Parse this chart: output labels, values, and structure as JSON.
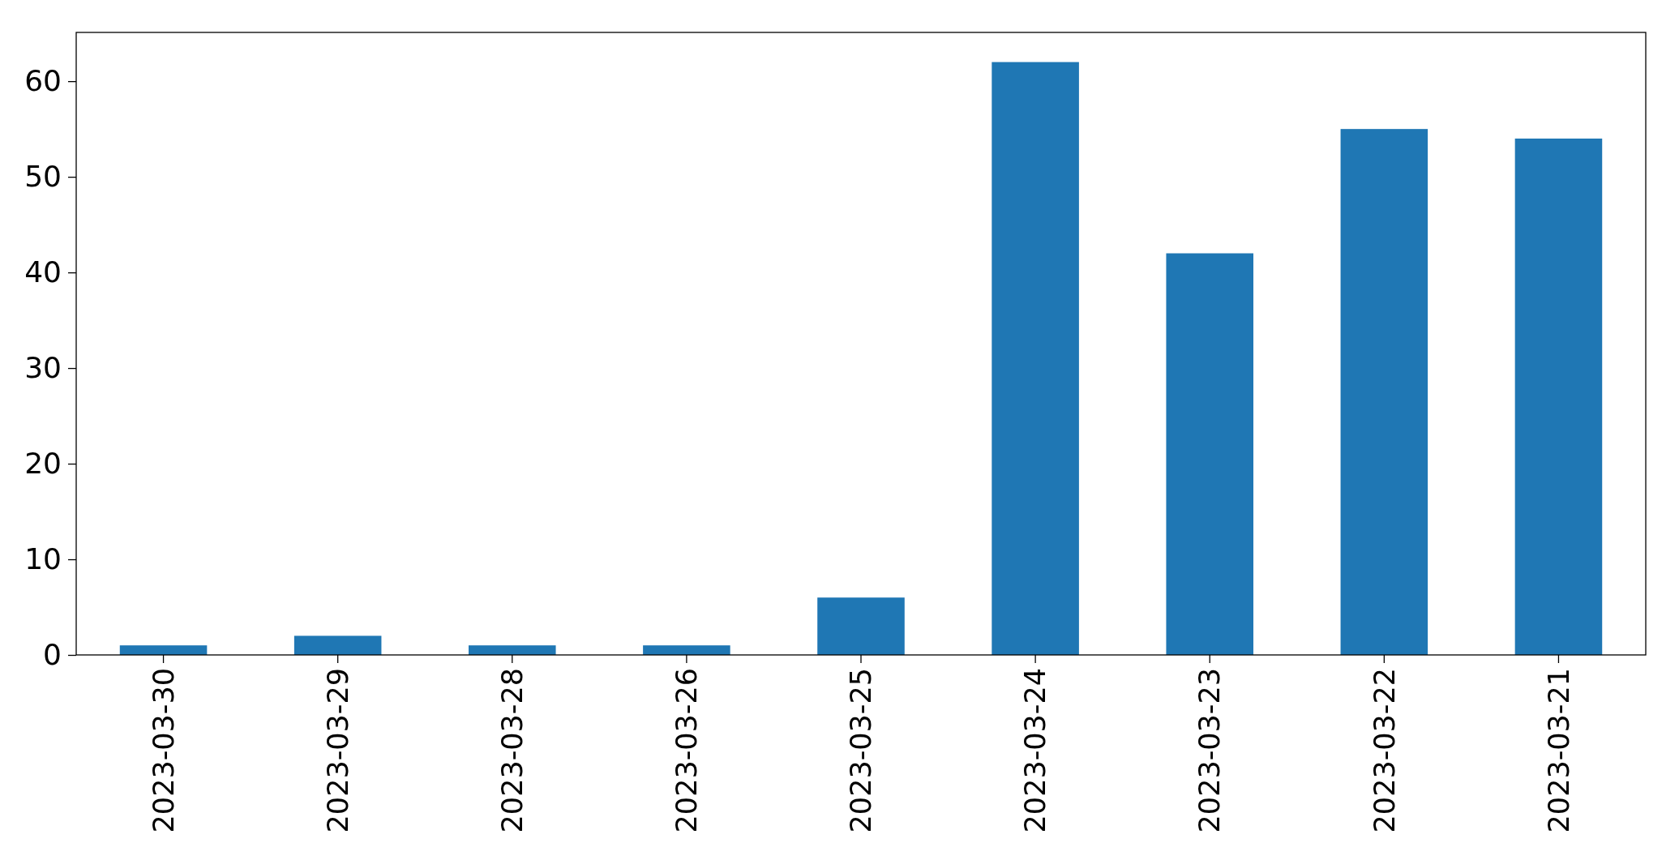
{
  "chart_data": {
    "type": "bar",
    "categories": [
      "2023-03-30",
      "2023-03-29",
      "2023-03-28",
      "2023-03-26",
      "2023-03-25",
      "2023-03-24",
      "2023-03-23",
      "2023-03-22",
      "2023-03-21"
    ],
    "values": [
      1,
      2,
      1,
      1,
      6,
      62,
      42,
      55,
      54
    ],
    "color": "#1f77b4",
    "ylim": [
      0,
      65.1
    ],
    "yticks": [
      0,
      10,
      20,
      30,
      40,
      50,
      60
    ]
  }
}
